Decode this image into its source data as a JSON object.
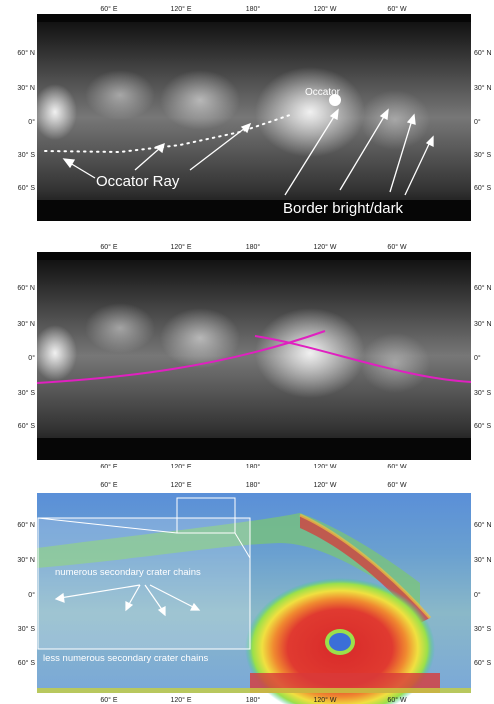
{
  "axes": {
    "lon_ticks": [
      "60° E",
      "120° E",
      "180°",
      "120° W",
      "60° W"
    ],
    "lat_ticks": [
      "60° N",
      "30° N",
      "0°",
      "30° S",
      "60° S"
    ]
  },
  "panel_a": {
    "annotations": {
      "occator": "Occator",
      "occator_ray": "Occator Ray",
      "border": "Border bright/dark"
    }
  },
  "panel_b": {
    "line_color": "#e020c0"
  },
  "panel_c": {
    "annotations": {
      "numerous_chains": "numerous secondary crater chains",
      "less_numerous_chains": "less numerous secondary crater chains"
    },
    "colormap": [
      "#3b6fd8",
      "#2ec8a0",
      "#9be04a",
      "#f0e040",
      "#f08a30",
      "#d82a2a"
    ]
  }
}
